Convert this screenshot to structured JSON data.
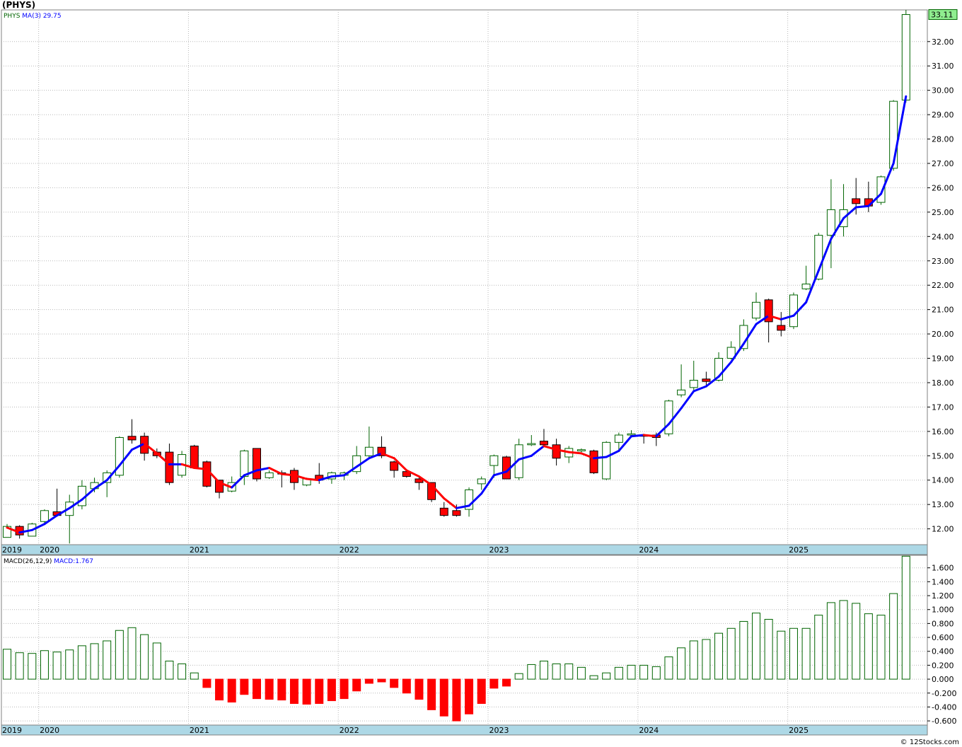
{
  "header": {
    "title": "(PHYS)"
  },
  "footer": {
    "credit": "© 12Stocks.com"
  },
  "colors": {
    "up": "#006400",
    "down": "#ff0000",
    "ma_up": "#0000ff",
    "ma_down": "#ff0000",
    "grid": "#b8b8b8",
    "axis_band": "#add8e6",
    "last_price_bg": "#90ee90"
  },
  "chart_data": [
    {
      "type": "candlestick",
      "panel": "price",
      "symbol": "PHYS",
      "legend": {
        "symbol": "PHYS",
        "ma_label": "MA(3)",
        "ma_value": "29.75"
      },
      "last_price_label": "33.11",
      "ylim": [
        11.35,
        33.3
      ],
      "y_ticks": [
        12.0,
        13.0,
        14.0,
        15.0,
        16.0,
        17.0,
        18.0,
        19.0,
        20.0,
        21.0,
        22.0,
        23.0,
        24.0,
        25.0,
        26.0,
        27.0,
        28.0,
        29.0,
        30.0,
        31.0,
        32.0
      ],
      "y_tick_labels": [
        "12.00",
        "13.00",
        "14.00",
        "15.00",
        "16.00",
        "17.00",
        "18.00",
        "19.00",
        "20.00",
        "21.00",
        "22.00",
        "23.00",
        "24.00",
        "25.00",
        "26.00",
        "27.00",
        "28.00",
        "29.00",
        "30.00",
        "31.00",
        "32.00"
      ],
      "x_labels": [
        "2019",
        "2020",
        "2021",
        "2022",
        "2023",
        "2024",
        "2025"
      ],
      "x_label_month_index": [
        0,
        3,
        15,
        27,
        39,
        51,
        63
      ],
      "x_grid_month_index": [
        3,
        15,
        27,
        39,
        51,
        63
      ],
      "candles": [
        {
          "o": 11.65,
          "h": 12.2,
          "l": 11.65,
          "c": 12.1
        },
        {
          "o": 12.1,
          "h": 12.15,
          "l": 11.6,
          "c": 11.75
        },
        {
          "o": 11.7,
          "h": 12.25,
          "l": 11.7,
          "c": 12.2
        },
        {
          "o": 12.3,
          "h": 12.8,
          "l": 12.25,
          "c": 12.75
        },
        {
          "o": 12.7,
          "h": 13.65,
          "l": 12.5,
          "c": 12.55
        },
        {
          "o": 12.55,
          "h": 13.4,
          "l": 11.4,
          "c": 13.1
        },
        {
          "o": 12.95,
          "h": 14.0,
          "l": 12.8,
          "c": 13.75
        },
        {
          "o": 13.65,
          "h": 14.1,
          "l": 13.5,
          "c": 13.9
        },
        {
          "o": 13.9,
          "h": 14.4,
          "l": 13.3,
          "c": 14.3
        },
        {
          "o": 14.2,
          "h": 15.8,
          "l": 14.1,
          "c": 15.75
        },
        {
          "o": 15.8,
          "h": 16.5,
          "l": 15.5,
          "c": 15.65
        },
        {
          "o": 15.8,
          "h": 15.95,
          "l": 14.8,
          "c": 15.1
        },
        {
          "o": 15.15,
          "h": 15.3,
          "l": 14.9,
          "c": 15.0
        },
        {
          "o": 15.15,
          "h": 15.5,
          "l": 13.8,
          "c": 13.9
        },
        {
          "o": 14.2,
          "h": 15.2,
          "l": 14.1,
          "c": 15.05
        },
        {
          "o": 15.4,
          "h": 15.45,
          "l": 14.5,
          "c": 14.5
        },
        {
          "o": 14.75,
          "h": 14.8,
          "l": 13.7,
          "c": 13.75
        },
        {
          "o": 14.0,
          "h": 14.0,
          "l": 13.25,
          "c": 13.5
        },
        {
          "o": 13.55,
          "h": 14.15,
          "l": 13.5,
          "c": 13.9
        },
        {
          "o": 14.15,
          "h": 15.25,
          "l": 13.8,
          "c": 15.2
        },
        {
          "o": 15.3,
          "h": 15.3,
          "l": 13.95,
          "c": 14.05
        },
        {
          "o": 14.1,
          "h": 14.4,
          "l": 14.05,
          "c": 14.3
        },
        {
          "o": 14.3,
          "h": 14.4,
          "l": 13.7,
          "c": 14.25
        },
        {
          "o": 14.4,
          "h": 14.5,
          "l": 13.6,
          "c": 13.9
        },
        {
          "o": 13.8,
          "h": 14.1,
          "l": 13.75,
          "c": 14.05
        },
        {
          "o": 14.2,
          "h": 14.7,
          "l": 13.85,
          "c": 14.0
        },
        {
          "o": 14.05,
          "h": 14.35,
          "l": 13.85,
          "c": 14.3
        },
        {
          "o": 14.2,
          "h": 14.35,
          "l": 14.0,
          "c": 14.3
        },
        {
          "o": 14.35,
          "h": 15.4,
          "l": 14.25,
          "c": 15.0
        },
        {
          "o": 15.0,
          "h": 16.2,
          "l": 14.9,
          "c": 15.35
        },
        {
          "o": 15.35,
          "h": 15.8,
          "l": 14.9,
          "c": 15.0
        },
        {
          "o": 14.75,
          "h": 14.8,
          "l": 14.1,
          "c": 14.4
        },
        {
          "o": 14.35,
          "h": 14.4,
          "l": 14.1,
          "c": 14.15
        },
        {
          "o": 14.05,
          "h": 14.1,
          "l": 13.6,
          "c": 13.9
        },
        {
          "o": 13.9,
          "h": 13.9,
          "l": 13.1,
          "c": 13.2
        },
        {
          "o": 12.85,
          "h": 13.1,
          "l": 12.5,
          "c": 12.55
        },
        {
          "o": 12.75,
          "h": 13.0,
          "l": 12.5,
          "c": 12.55
        },
        {
          "o": 12.8,
          "h": 13.7,
          "l": 12.5,
          "c": 13.6
        },
        {
          "o": 13.85,
          "h": 14.15,
          "l": 13.6,
          "c": 14.05
        },
        {
          "o": 14.6,
          "h": 15.05,
          "l": 14.1,
          "c": 15.0
        },
        {
          "o": 14.95,
          "h": 15.0,
          "l": 14.05,
          "c": 14.05
        },
        {
          "o": 14.1,
          "h": 15.7,
          "l": 14.0,
          "c": 15.45
        },
        {
          "o": 15.45,
          "h": 15.85,
          "l": 15.4,
          "c": 15.5
        },
        {
          "o": 15.6,
          "h": 16.1,
          "l": 15.4,
          "c": 15.45
        },
        {
          "o": 15.45,
          "h": 15.7,
          "l": 14.6,
          "c": 14.9
        },
        {
          "o": 14.95,
          "h": 15.4,
          "l": 14.7,
          "c": 15.3
        },
        {
          "o": 15.2,
          "h": 15.3,
          "l": 15.15,
          "c": 15.25
        },
        {
          "o": 15.2,
          "h": 15.25,
          "l": 14.25,
          "c": 14.3
        },
        {
          "o": 14.05,
          "h": 15.6,
          "l": 14.0,
          "c": 15.55
        },
        {
          "o": 15.55,
          "h": 15.95,
          "l": 15.2,
          "c": 15.85
        },
        {
          "o": 15.85,
          "h": 16.05,
          "l": 15.75,
          "c": 15.9
        },
        {
          "o": 15.85,
          "h": 15.9,
          "l": 15.5,
          "c": 15.8
        },
        {
          "o": 15.85,
          "h": 15.95,
          "l": 15.4,
          "c": 15.75
        },
        {
          "o": 15.9,
          "h": 17.3,
          "l": 15.8,
          "c": 17.25
        },
        {
          "o": 17.5,
          "h": 18.75,
          "l": 17.4,
          "c": 17.7
        },
        {
          "o": 17.8,
          "h": 18.9,
          "l": 17.7,
          "c": 18.1
        },
        {
          "o": 18.15,
          "h": 18.45,
          "l": 17.9,
          "c": 18.05
        },
        {
          "o": 18.1,
          "h": 19.25,
          "l": 18.05,
          "c": 19.0
        },
        {
          "o": 19.0,
          "h": 19.7,
          "l": 18.95,
          "c": 19.45
        },
        {
          "o": 19.4,
          "h": 20.6,
          "l": 19.3,
          "c": 20.35
        },
        {
          "o": 20.65,
          "h": 21.7,
          "l": 20.55,
          "c": 21.3
        },
        {
          "o": 21.4,
          "h": 21.45,
          "l": 19.65,
          "c": 20.5
        },
        {
          "o": 20.35,
          "h": 20.9,
          "l": 19.9,
          "c": 20.15
        },
        {
          "o": 20.3,
          "h": 21.7,
          "l": 20.2,
          "c": 21.6
        },
        {
          "o": 21.85,
          "h": 22.8,
          "l": 21.8,
          "c": 22.05
        },
        {
          "o": 22.25,
          "h": 24.15,
          "l": 22.2,
          "c": 24.05
        },
        {
          "o": 24.05,
          "h": 26.35,
          "l": 22.7,
          "c": 25.1
        },
        {
          "o": 24.4,
          "h": 26.15,
          "l": 24.0,
          "c": 25.1
        },
        {
          "o": 25.55,
          "h": 26.4,
          "l": 24.9,
          "c": 25.35
        },
        {
          "o": 25.55,
          "h": 26.25,
          "l": 25.0,
          "c": 25.25
        },
        {
          "o": 25.4,
          "h": 26.5,
          "l": 25.3,
          "c": 26.45
        },
        {
          "o": 26.8,
          "h": 29.6,
          "l": 26.7,
          "c": 29.55
        },
        {
          "o": 29.6,
          "h": 33.3,
          "l": 29.5,
          "c": 33.11
        }
      ],
      "ma": [
        12.05,
        11.85,
        11.95,
        12.2,
        12.55,
        12.85,
        13.2,
        13.65,
        14.0,
        14.6,
        15.25,
        15.5,
        15.1,
        14.65,
        14.65,
        14.5,
        14.45,
        13.9,
        13.7,
        14.2,
        14.4,
        14.5,
        14.25,
        14.2,
        14.05,
        14.0,
        14.15,
        14.2,
        14.55,
        14.9,
        15.1,
        14.9,
        14.4,
        14.15,
        13.8,
        13.25,
        12.85,
        12.95,
        13.45,
        14.2,
        14.35,
        14.85,
        15.0,
        15.4,
        15.25,
        15.15,
        15.1,
        14.9,
        14.95,
        15.2,
        15.8,
        15.85,
        15.8,
        16.3,
        16.95,
        17.65,
        17.85,
        18.25,
        18.85,
        19.6,
        20.4,
        20.75,
        20.6,
        20.75,
        21.3,
        22.6,
        23.9,
        24.75,
        25.2,
        25.25,
        25.75,
        27.0,
        29.75
      ],
      "ma_direction_up": [
        true,
        false,
        true,
        true,
        true,
        true,
        true,
        true,
        true,
        true,
        true,
        true,
        false,
        false,
        true,
        false,
        false,
        false,
        false,
        true,
        true,
        true,
        false,
        false,
        false,
        false,
        true,
        true,
        true,
        true,
        true,
        false,
        false,
        false,
        false,
        false,
        false,
        true,
        true,
        true,
        true,
        true,
        true,
        true,
        false,
        false,
        false,
        false,
        true,
        true,
        true,
        true,
        false,
        true,
        true,
        true,
        true,
        true,
        true,
        true,
        true,
        true,
        false,
        true,
        true,
        true,
        true,
        true,
        true,
        true,
        true,
        true,
        true
      ]
    },
    {
      "type": "bar",
      "panel": "macd",
      "legend": {
        "label": "MACD(26,12,9)",
        "value_label": "MACD:1.767"
      },
      "ylim": [
        -0.66,
        1.78
      ],
      "y_ticks": [
        -0.6,
        -0.4,
        -0.2,
        0.0,
        0.2,
        0.4,
        0.6,
        0.8,
        1.0,
        1.2,
        1.4,
        1.6
      ],
      "y_tick_labels": [
        "-0.600",
        "-0.400",
        "-0.200",
        "0.000",
        "0.200",
        "0.400",
        "0.600",
        "0.800",
        "1.000",
        "1.200",
        "1.400",
        "1.600"
      ],
      "x_labels": [
        "2019",
        "2020",
        "2021",
        "2022",
        "2023",
        "2024",
        "2025"
      ],
      "values": [
        0.43,
        0.38,
        0.37,
        0.41,
        0.39,
        0.42,
        0.48,
        0.51,
        0.55,
        0.7,
        0.74,
        0.64,
        0.52,
        0.26,
        0.22,
        0.09,
        -0.12,
        -0.3,
        -0.33,
        -0.22,
        -0.28,
        -0.29,
        -0.3,
        -0.35,
        -0.36,
        -0.35,
        -0.31,
        -0.28,
        -0.17,
        -0.06,
        -0.04,
        -0.12,
        -0.2,
        -0.29,
        -0.44,
        -0.53,
        -0.6,
        -0.5,
        -0.35,
        -0.13,
        -0.1,
        0.08,
        0.21,
        0.26,
        0.22,
        0.22,
        0.17,
        0.05,
        0.09,
        0.17,
        0.2,
        0.2,
        0.18,
        0.32,
        0.45,
        0.55,
        0.57,
        0.66,
        0.73,
        0.83,
        0.95,
        0.86,
        0.69,
        0.73,
        0.73,
        0.92,
        1.1,
        1.13,
        1.09,
        0.94,
        0.92,
        1.23,
        1.767
      ]
    }
  ]
}
